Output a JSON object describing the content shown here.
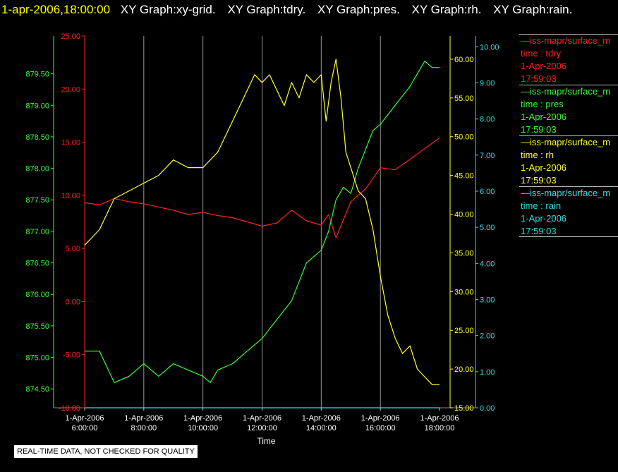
{
  "header": {
    "timestamp": "1-apr-2006,18:00:00",
    "graphs": [
      "XY Graph:xy-grid.",
      "XY Graph:tdry.",
      "XY Graph:pres.",
      "XY Graph:rh.",
      "XY Graph:rain."
    ]
  },
  "legend": [
    {
      "source": "—iss-mapr/surface_m",
      "var": "time : tdry",
      "date": "1-Apr-2006",
      "time": "17:59:03",
      "color": "#ff2020"
    },
    {
      "source": "—iss-mapr/surface_m",
      "var": "time : pres",
      "date": "1-Apr-2006",
      "time": "17:59:03",
      "color": "#33ff33"
    },
    {
      "source": "—iss-mapr/surface_m",
      "var": "time : rh",
      "date": "1-Apr-2006",
      "time": "17:59:03",
      "color": "#ffff33"
    },
    {
      "source": "—iss-mapr/surface_m",
      "var": "time : rain",
      "date": "1-Apr-2006",
      "time": "17:59:03",
      "color": "#33dddd"
    }
  ],
  "note": "REAL-TIME DATA, NOT CHECKED FOR QUALITY",
  "chart_data": {
    "type": "line",
    "xlabel": "Time",
    "x_ticks": [
      {
        "date": "1-Apr-2006",
        "time": "6:00:00"
      },
      {
        "date": "1-Apr-2006",
        "time": "8:00:00"
      },
      {
        "date": "1-Apr-2006",
        "time": "10:00:00"
      },
      {
        "date": "1-Apr-2006",
        "time": "12:00:00"
      },
      {
        "date": "1-Apr-2006",
        "time": "14:00:00"
      },
      {
        "date": "1-Apr-2006",
        "time": "16:00:00"
      },
      {
        "date": "1-Apr-2006",
        "time": "18:00:00"
      }
    ],
    "xlim": [
      "1-Apr-2006 06:00:00",
      "1-Apr-2006 18:00:00"
    ],
    "grid": true,
    "axes": [
      {
        "series": "tdry",
        "side": "left",
        "color": "#ff2020",
        "ylim": [
          -10,
          25
        ],
        "ticks": [
          "-10.00",
          "-5.00",
          "0.00",
          "5.00",
          "10.00",
          "15.00",
          "20.00",
          "25.00"
        ]
      },
      {
        "series": "pres",
        "side": "left",
        "color": "#33ff33",
        "ylim": [
          874.2,
          880.1
        ],
        "ticks": [
          "874.50",
          "875.00",
          "875.50",
          "876.00",
          "876.50",
          "877.00",
          "877.50",
          "878.00",
          "878.50",
          "879.00",
          "879.50"
        ]
      },
      {
        "series": "rh",
        "side": "right",
        "color": "#ffff33",
        "ylim": [
          15,
          63
        ],
        "ticks": [
          "15.00",
          "20.00",
          "25.00",
          "30.00",
          "35.00",
          "40.00",
          "45.00",
          "50.00",
          "55.00",
          "60.00"
        ]
      },
      {
        "series": "rain",
        "side": "right",
        "color": "#33dddd",
        "ylim": [
          0,
          10.3
        ],
        "ticks": [
          "0.00",
          "1.00",
          "2.00",
          "3.00",
          "4.00",
          "5.00",
          "6.00",
          "7.00",
          "8.00",
          "9.00",
          "10.00"
        ]
      }
    ],
    "series": [
      {
        "key": "tdry",
        "color": "#ff2020",
        "x": [
          "06:00",
          "06:30",
          "07:00",
          "07:30",
          "08:00",
          "08:30",
          "09:00",
          "09:30",
          "10:00",
          "10:30",
          "11:00",
          "11:30",
          "12:00",
          "12:30",
          "13:00",
          "13:30",
          "14:00",
          "14:15",
          "14:30",
          "15:00",
          "15:30",
          "16:00",
          "16:30",
          "17:00",
          "17:30",
          "18:00"
        ],
        "y": [
          9.3,
          9.1,
          9.7,
          9.4,
          9.2,
          8.9,
          8.6,
          8.2,
          8.4,
          8.1,
          7.9,
          7.5,
          7.1,
          7.4,
          8.6,
          7.6,
          7.2,
          8.2,
          6.0,
          9.4,
          10.6,
          12.6,
          12.4,
          13.4,
          14.4,
          15.4
        ]
      },
      {
        "key": "pres",
        "color": "#33ff33",
        "x": [
          "06:00",
          "06:30",
          "07:00",
          "07:30",
          "08:00",
          "08:30",
          "09:00",
          "09:30",
          "10:00",
          "10:15",
          "10:30",
          "11:00",
          "11:30",
          "12:00",
          "12:30",
          "13:00",
          "13:30",
          "14:00",
          "14:15",
          "14:30",
          "14:45",
          "15:00",
          "15:15",
          "15:30",
          "15:45",
          "16:00",
          "16:30",
          "17:00",
          "17:30",
          "17:45",
          "18:00"
        ],
        "y": [
          875.1,
          875.1,
          874.6,
          874.7,
          874.9,
          874.7,
          874.9,
          874.8,
          874.7,
          874.6,
          874.8,
          874.9,
          875.1,
          875.3,
          875.6,
          875.9,
          876.5,
          876.7,
          877.0,
          877.5,
          877.7,
          877.6,
          878.0,
          878.3,
          878.6,
          878.7,
          879.0,
          879.3,
          879.7,
          879.6,
          879.6
        ]
      },
      {
        "key": "rh",
        "color": "#ffff33",
        "x": [
          "06:00",
          "06:15",
          "06:30",
          "06:45",
          "07:00",
          "07:30",
          "08:00",
          "08:30",
          "09:00",
          "09:30",
          "10:00",
          "10:30",
          "11:00",
          "11:30",
          "11:45",
          "12:00",
          "12:15",
          "12:30",
          "12:45",
          "13:00",
          "13:15",
          "13:30",
          "13:45",
          "14:00",
          "14:10",
          "14:20",
          "14:30",
          "14:40",
          "14:50",
          "15:00",
          "15:15",
          "15:30",
          "15:45",
          "16:00",
          "16:15",
          "16:30",
          "16:45",
          "17:00",
          "17:15",
          "17:30",
          "17:45",
          "18:00"
        ],
        "y": [
          36,
          37,
          38,
          40,
          42,
          43,
          44,
          45,
          47,
          46,
          46,
          48,
          52,
          56,
          58,
          57,
          58,
          56,
          54,
          57,
          55,
          58,
          57,
          58,
          52,
          57,
          60,
          55,
          48,
          46,
          43,
          42,
          38,
          32,
          27,
          24,
          22,
          23,
          20,
          19,
          18,
          18
        ]
      },
      {
        "key": "rain",
        "color": "#33dddd",
        "x": [
          "06:00",
          "18:00"
        ],
        "y": [
          0,
          0
        ]
      }
    ]
  }
}
